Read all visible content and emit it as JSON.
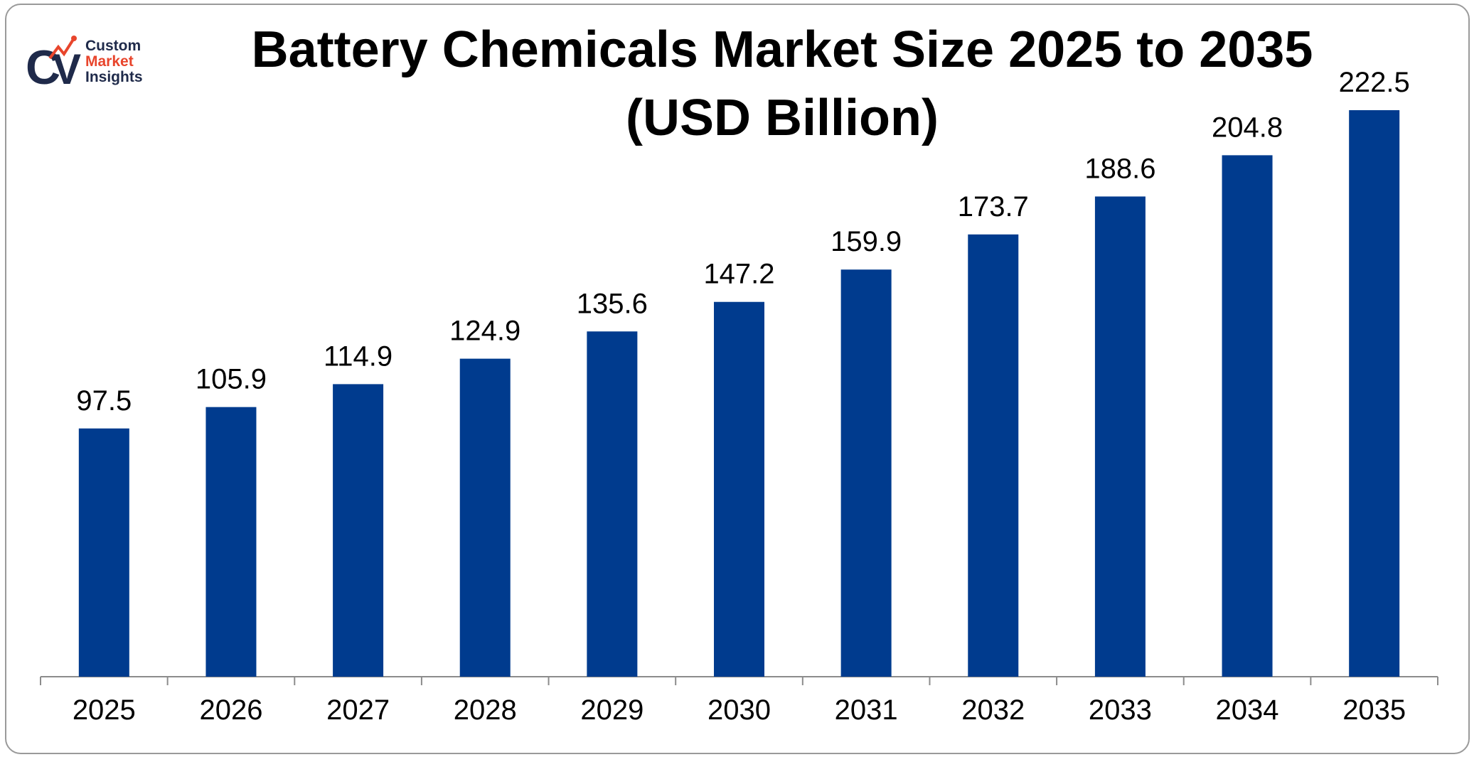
{
  "logo": {
    "line1": "Custom",
    "line2": "Market",
    "line3": "Insights",
    "accent_color": "#e8452c",
    "dark_color": "#1f2a4a"
  },
  "chart_data": {
    "type": "bar",
    "title_line1": "Battery Chemicals Market Size 2025 to 2035",
    "title_line2": "(USD Billion)",
    "categories": [
      "2025",
      "2026",
      "2027",
      "2028",
      "2029",
      "2030",
      "2031",
      "2032",
      "2033",
      "2034",
      "2035"
    ],
    "values": [
      97.5,
      105.9,
      114.9,
      124.9,
      135.6,
      147.2,
      159.9,
      173.7,
      188.6,
      204.8,
      222.5
    ],
    "value_labels": [
      "97.5",
      "105.9",
      "114.9",
      "124.9",
      "135.6",
      "147.2",
      "159.9",
      "173.7",
      "188.6",
      "204.8",
      "222.5"
    ],
    "xlabel": "",
    "ylabel": "",
    "ylim": [
      0,
      222.5
    ],
    "grid": false,
    "bar_color": "#003b8e",
    "axis_color": "#8c8c8c"
  }
}
